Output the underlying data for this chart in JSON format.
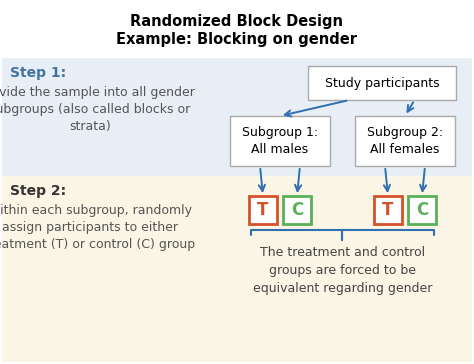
{
  "title_line1": "Randomized Block Design",
  "title_line2": "Example: Blocking on gender",
  "title_fontsize": 10.5,
  "bg_color_top": "#e8eef5",
  "bg_color_bottom": "#faf5e4",
  "step1_bold": "Step 1:",
  "step1_text": "Divide the sample into all gender\nsubgroups (also called blocks or\nstrata)",
  "step2_bold": "Step 2:",
  "step2_text": "Within each subgroup, randomly\nassign participants to either\ntreatment (T) or control (C) group",
  "box_study": "Study participants",
  "box_sub1": "Subgroup 1:\nAll males",
  "box_sub2": "Subgroup 2:\nAll females",
  "T_color": "#d4522a",
  "C_color": "#5ab05a",
  "arrow_color": "#3070b0",
  "box_border_color": "#aaaaaa",
  "footer_text": "The treatment and control\ngroups are forced to be\nequivalent regarding gender",
  "font_size_boxes": 9,
  "font_size_step_bold": 10,
  "font_size_text": 9,
  "font_size_tc": 12,
  "font_size_footer": 9,
  "step1_color": "#4472a0",
  "step2_color": "#333333"
}
